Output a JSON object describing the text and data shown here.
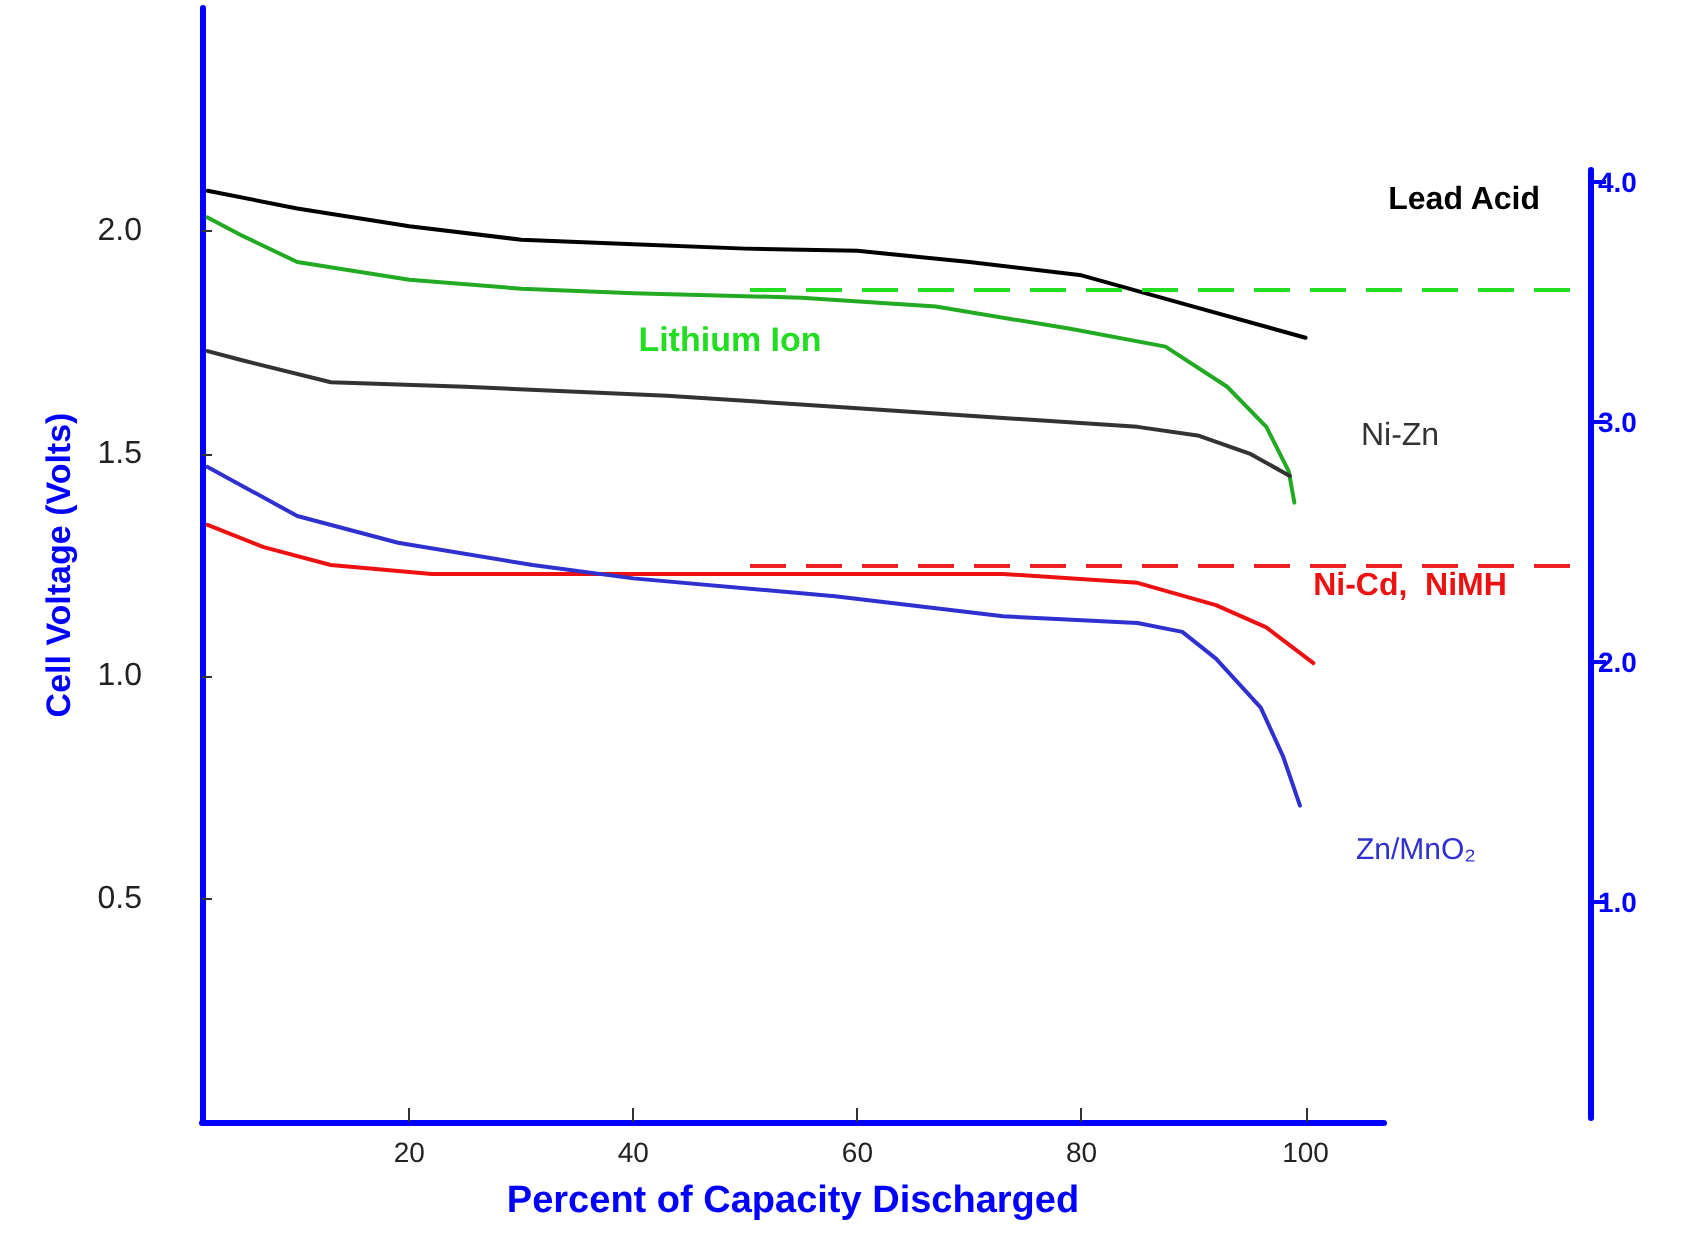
{
  "chart_data": {
    "type": "line",
    "xlabel": "Percent of Capacity Discharged",
    "ylabel": "Cell Voltage (Volts)",
    "xlim": [
      1.5,
      107
    ],
    "xticks": [
      20,
      40,
      60,
      80,
      100
    ],
    "ylim": [
      0,
      2.5
    ],
    "yticks": [
      0.5,
      {
        "value": 1,
        "label": "1.0"
      },
      1.5,
      {
        "value": 2,
        "label": "2.0"
      }
    ],
    "y2lim": [
      0.1,
      4.05
    ],
    "y2ticks": [
      {
        "value": 1,
        "label": "1.0"
      },
      {
        "value": 2,
        "label": "2.0"
      },
      {
        "value": 3,
        "label": "3.0"
      },
      {
        "value": 4,
        "label": "4.0"
      }
    ],
    "grid": false,
    "legend": false,
    "marker": "none",
    "line_style": "solid",
    "series": [
      {
        "name": "Lead Acid",
        "color": "#000000",
        "x": [
          2,
          10,
          20,
          30,
          40,
          50,
          60,
          70,
          80,
          90,
          100
        ],
        "values": [
          2.09,
          2.05,
          2.01,
          1.98,
          1.97,
          1.96,
          1.955,
          1.93,
          1.9,
          1.83,
          1.76
        ]
      },
      {
        "name": "Lithium Ion",
        "color": "#22aa22",
        "x": [
          2,
          5,
          10,
          20,
          30,
          40,
          55,
          67,
          79,
          87.5,
          93,
          96.5,
          98.5,
          99
        ],
        "values": [
          2.03,
          1.99,
          1.93,
          1.89,
          1.87,
          1.86,
          1.85,
          1.83,
          1.78,
          1.74,
          1.65,
          1.56,
          1.46,
          1.39
        ]
      },
      {
        "name": "Ni-Zn",
        "color": "#333333",
        "x": [
          2,
          5,
          13,
          25,
          43,
          58,
          73,
          85,
          90.5,
          95,
          98.6
        ],
        "values": [
          1.73,
          1.71,
          1.66,
          1.65,
          1.63,
          1.605,
          1.58,
          1.56,
          1.54,
          1.5,
          1.45
        ]
      },
      {
        "name": "Ni-Cd,  NiMH",
        "color": "#ee1111",
        "x": [
          2,
          7,
          13,
          22,
          40,
          58,
          73,
          85,
          92,
          96.5,
          100.7
        ],
        "values": [
          1.34,
          1.29,
          1.25,
          1.23,
          1.23,
          1.23,
          1.23,
          1.21,
          1.16,
          1.11,
          1.03
        ]
      },
      {
        "name": "Zn/MnO₂",
        "color": "#3030d0",
        "x": [
          2,
          10,
          19,
          31,
          40,
          58,
          73,
          85,
          89,
          92,
          96,
          98,
          99.5
        ],
        "values": [
          1.47,
          1.36,
          1.3,
          1.25,
          1.22,
          1.18,
          1.135,
          1.12,
          1.1,
          1.04,
          0.93,
          0.82,
          0.71
        ]
      }
    ],
    "ref_lines": [
      {
        "axis": "y2",
        "value": 3.55,
        "color": "#22dd22",
        "line_style": "dashed"
      },
      {
        "axis": "y2",
        "value": 2.4,
        "color": "#ee2222",
        "line_style": "dashed"
      }
    ]
  }
}
